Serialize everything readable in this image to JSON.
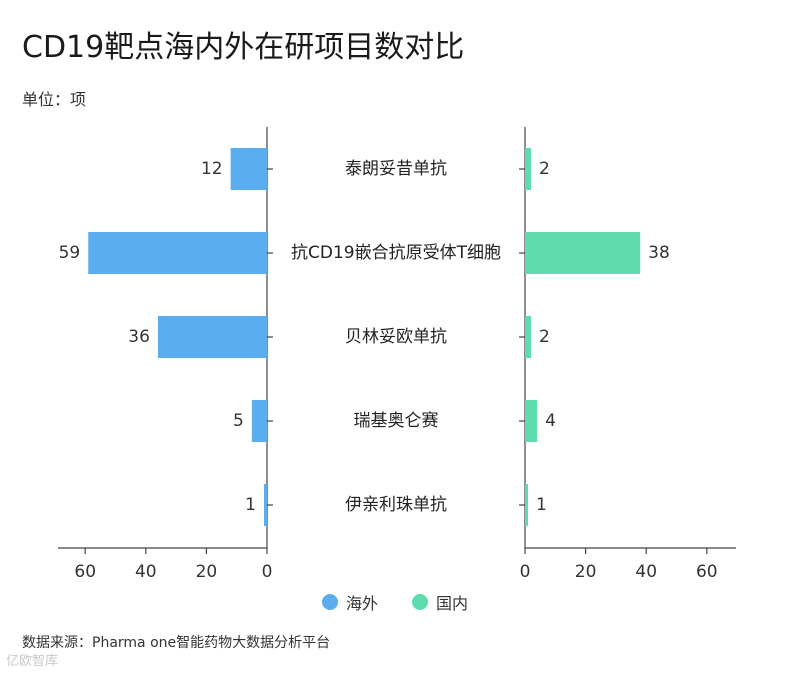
{
  "title": "CD19靶点海内外在研项目数对比",
  "unit_label": "单位：项",
  "source": "数据来源：Pharma one智能药物大数据分析平台",
  "watermark": "亿欧智库",
  "colors": {
    "overseas": "#5aaeef",
    "domestic": "#5fdcad"
  },
  "chart_data": {
    "type": "bar",
    "orientation": "horizontal-butterfly",
    "categories": [
      "泰朗妥昔单抗",
      "抗CD19嵌合抗原受体T细胞",
      "贝林妥欧单抗",
      "瑞基奥仑赛",
      "伊亲利珠单抗"
    ],
    "series": [
      {
        "name": "海外",
        "values": [
          12,
          59,
          36,
          5,
          1
        ]
      },
      {
        "name": "国内",
        "values": [
          2,
          38,
          2,
          4,
          1
        ]
      }
    ],
    "left_axis": {
      "reversed": true,
      "ticks": [
        60,
        40,
        20,
        0
      ],
      "xlim": [
        0,
        70
      ]
    },
    "right_axis": {
      "ticks": [
        0,
        20,
        40,
        60
      ],
      "xlim": [
        0,
        70
      ]
    },
    "legend_position": "bottom-center"
  }
}
